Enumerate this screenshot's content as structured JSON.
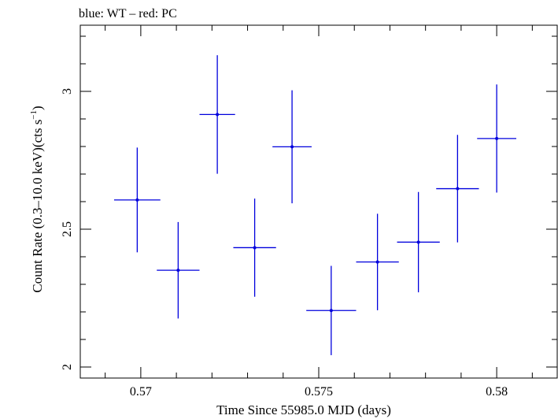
{
  "chart_data": {
    "type": "scatter",
    "title": "blue: WT – red: PC",
    "xlabel": "Time Since 55985.0 MJD (days)",
    "ylabel_main": "Count Rate (0.3–10.0 keV)(cts s",
    "ylabel_sup": "−1",
    "ylabel_end": ")",
    "xlim": [
      0.5683,
      0.5817
    ],
    "ylim": [
      1.96,
      3.24
    ],
    "x_ticks": [
      0.57,
      0.575,
      0.58
    ],
    "x_tick_labels": [
      "0.57",
      "0.575",
      "0.58"
    ],
    "y_ticks": [
      2,
      2.5,
      3
    ],
    "y_tick_labels": [
      "2",
      "2.5",
      "3"
    ],
    "grid": false,
    "series": [
      {
        "color": "#0000dd",
        "points": [
          {
            "x": 0.5699,
            "xerr": 0.00065,
            "y": 2.606,
            "yerr": 0.19
          },
          {
            "x": 0.57105,
            "xerr": 0.0006,
            "y": 2.351,
            "yerr": 0.175
          },
          {
            "x": 0.57215,
            "xerr": 0.0005,
            "y": 2.916,
            "yerr": 0.215
          },
          {
            "x": 0.5732,
            "xerr": 0.0006,
            "y": 2.433,
            "yerr": 0.178
          },
          {
            "x": 0.57425,
            "xerr": 0.00055,
            "y": 2.799,
            "yerr": 0.205
          },
          {
            "x": 0.57535,
            "xerr": 0.0007,
            "y": 2.205,
            "yerr": 0.162
          },
          {
            "x": 0.57665,
            "xerr": 0.0006,
            "y": 2.381,
            "yerr": 0.175
          },
          {
            "x": 0.5778,
            "xerr": 0.0006,
            "y": 2.453,
            "yerr": 0.182
          },
          {
            "x": 0.5789,
            "xerr": 0.0006,
            "y": 2.647,
            "yerr": 0.195
          },
          {
            "x": 0.58,
            "xerr": 0.00055,
            "y": 2.829,
            "yerr": 0.196
          }
        ]
      }
    ]
  }
}
